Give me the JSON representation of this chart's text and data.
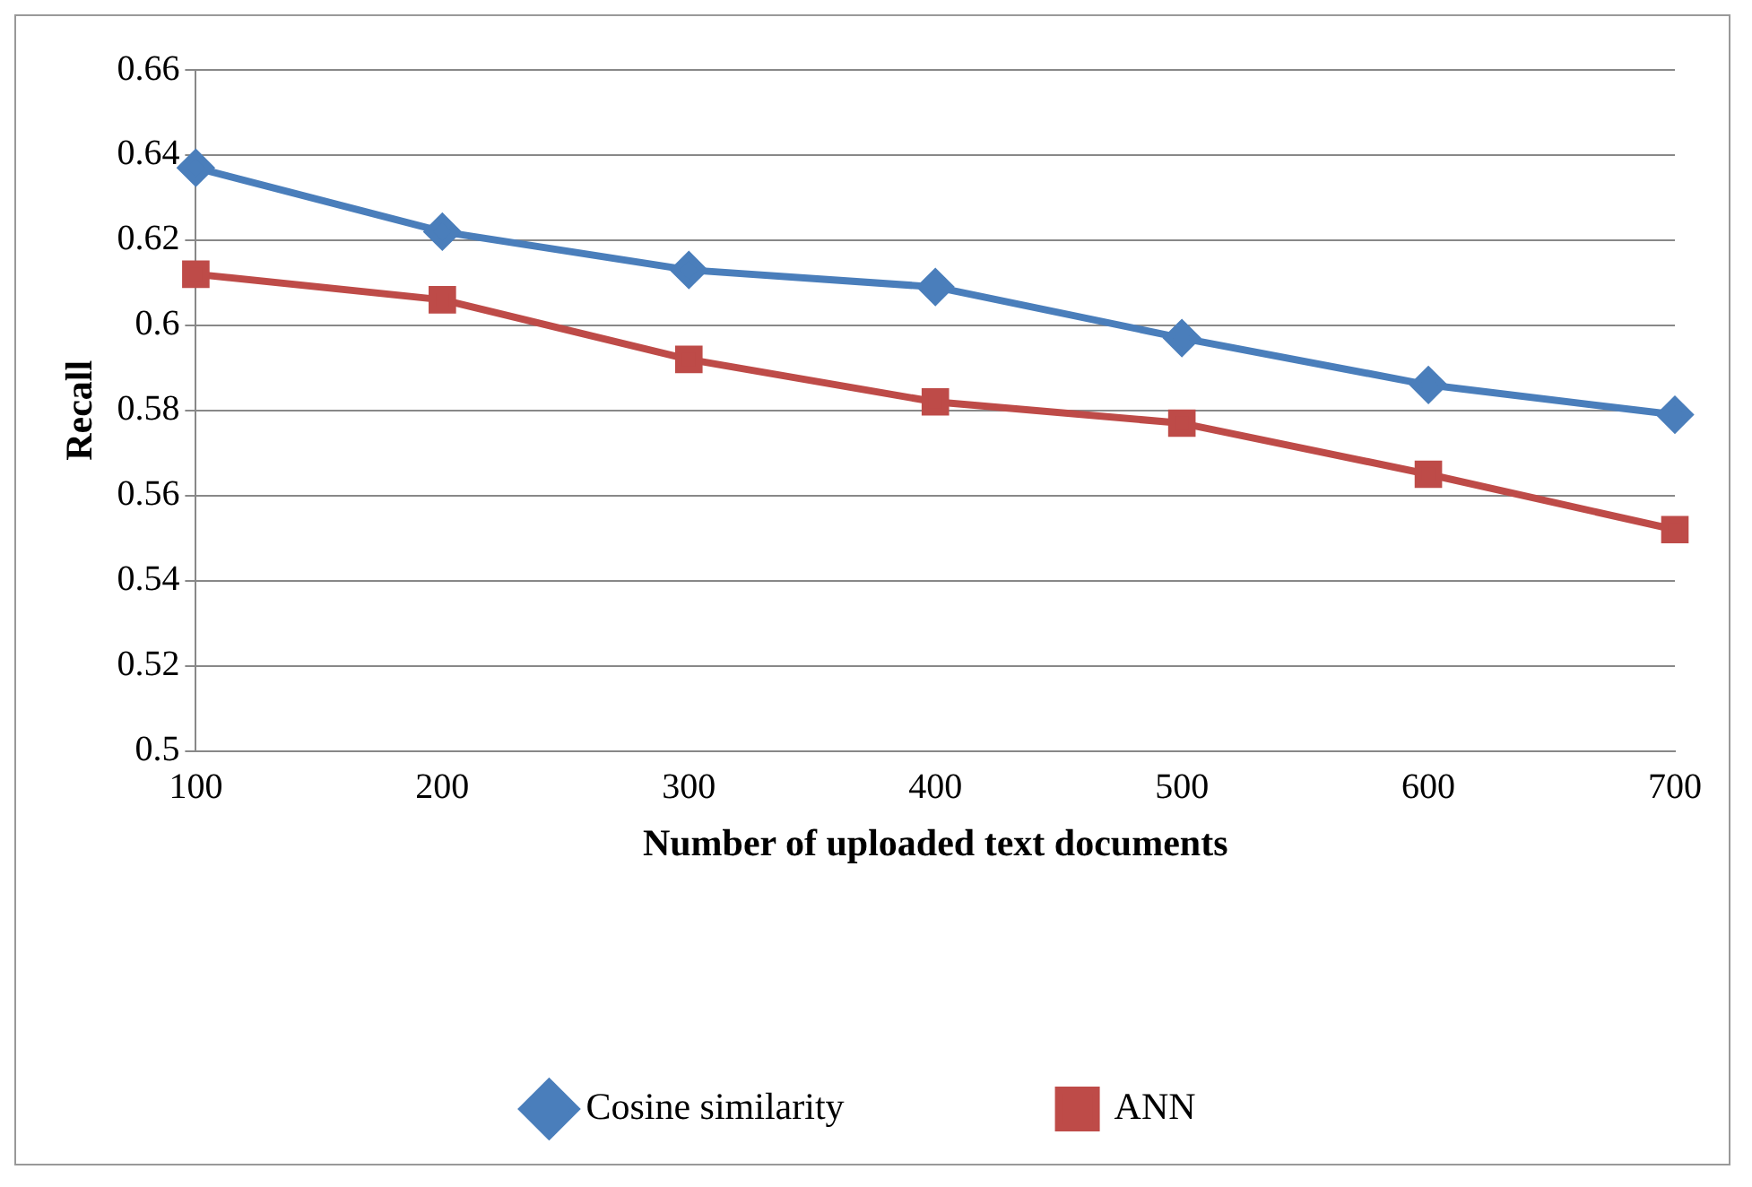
{
  "chart_data": {
    "type": "line",
    "xlabel": "Number of uploaded text documents",
    "ylabel": "Recall",
    "categories": [
      "100",
      "200",
      "300",
      "400",
      "500",
      "600",
      "700"
    ],
    "series": [
      {
        "name": "Cosine similarity",
        "color": "#4a7ebb",
        "marker": "diamond",
        "values": [
          0.637,
          0.622,
          0.613,
          0.609,
          0.597,
          0.586,
          0.579
        ]
      },
      {
        "name": "ANN",
        "color": "#be4b48",
        "marker": "square",
        "values": [
          0.612,
          0.606,
          0.592,
          0.582,
          0.577,
          0.565,
          0.552
        ]
      }
    ],
    "ylim": [
      0.5,
      0.66
    ],
    "yticks": [
      0.5,
      0.52,
      0.54,
      0.56,
      0.58,
      0.6,
      0.62,
      0.64,
      0.66
    ],
    "grid": "y",
    "legend": "bottom",
    "line_style": "solid"
  }
}
